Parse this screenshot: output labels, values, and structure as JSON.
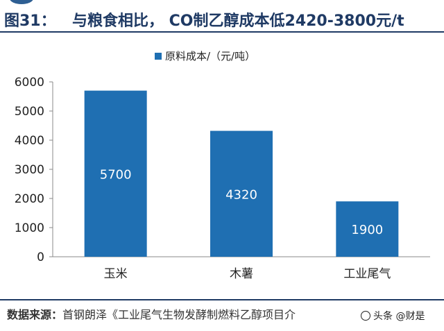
{
  "header": {
    "figure_label": "图31：",
    "title": "与粮食相比，  CO制乙醇成本低2420-3800元/t"
  },
  "chart_data": {
    "type": "bar",
    "categories": [
      "玉米",
      "木薯",
      "工业尾气"
    ],
    "series": [
      {
        "name": "原料成本/（元/吨）",
        "values": [
          5700,
          4320,
          1900
        ],
        "color": "#1f6fb2"
      }
    ],
    "data_labels": [
      "5700",
      "4320",
      "1900"
    ],
    "title": "",
    "xlabel": "",
    "ylabel": "",
    "ylim": [
      0,
      6000
    ],
    "yticks": [
      0,
      1000,
      2000,
      3000,
      4000,
      5000,
      6000
    ],
    "grid": false,
    "legend": "top-center"
  },
  "footer": {
    "source_prefix": "数据来源：",
    "source_text": "首钢朗泽《工业尾气生物发酵制燃料乙醇项目介",
    "watermark": "头条 @财是"
  }
}
